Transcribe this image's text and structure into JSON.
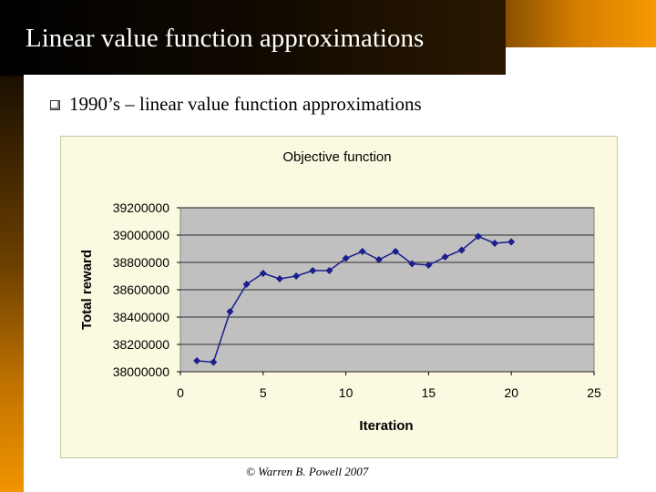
{
  "slide": {
    "title": "Linear value function approximations",
    "bullet": "1990’s – linear value function approximations",
    "footer": "© Warren B. Powell 2007"
  },
  "chart_data": {
    "type": "line",
    "title": "Objective function",
    "xlabel": "Iteration",
    "ylabel": "Total reward",
    "xlim": [
      0,
      25
    ],
    "ylim": [
      38000000,
      39200000
    ],
    "x_ticks": [
      0,
      5,
      10,
      15,
      20,
      25
    ],
    "y_ticks": [
      38000000,
      38200000,
      38400000,
      38600000,
      38800000,
      39000000,
      39200000
    ],
    "grid": true,
    "series": [
      {
        "color": "#1a1f8c",
        "points": [
          [
            1,
            38080000
          ],
          [
            2,
            38070000
          ],
          [
            3,
            38440000
          ],
          [
            4,
            38640000
          ],
          [
            5,
            38720000
          ],
          [
            6,
            38680000
          ],
          [
            7,
            38700000
          ],
          [
            8,
            38740000
          ],
          [
            9,
            38740000
          ],
          [
            10,
            38830000
          ],
          [
            11,
            38880000
          ],
          [
            12,
            38820000
          ],
          [
            13,
            38880000
          ],
          [
            14,
            38790000
          ],
          [
            15,
            38780000
          ],
          [
            16,
            38840000
          ],
          [
            17,
            38890000
          ],
          [
            18,
            38990000
          ],
          [
            19,
            38940000
          ],
          [
            20,
            38950000
          ]
        ]
      }
    ]
  }
}
